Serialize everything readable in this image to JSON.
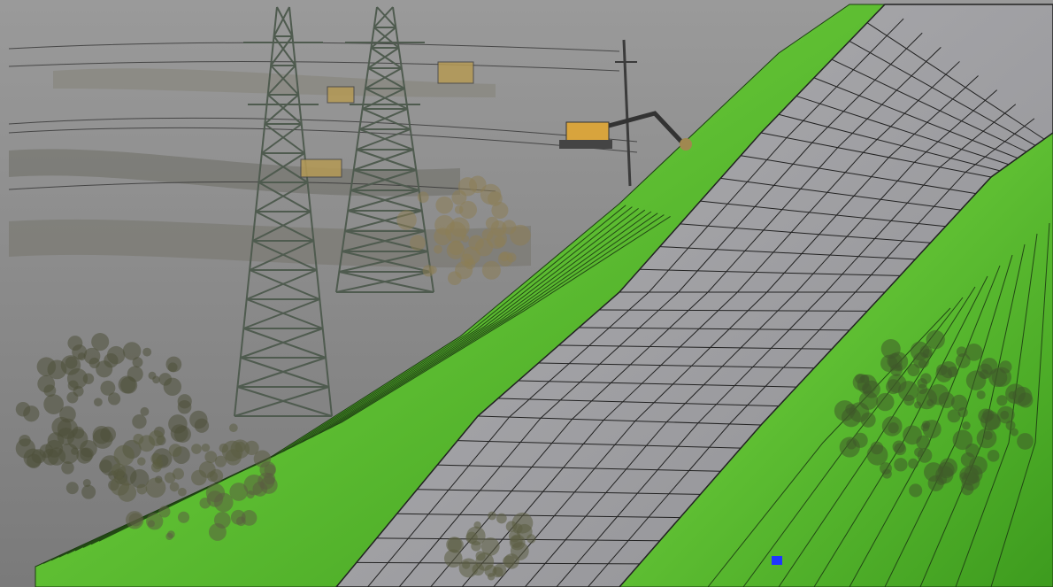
{
  "scene": {
    "colors": {
      "background": "#8c8c8c",
      "ground_point_cloud": "#7f7d77",
      "road_surface": "#a2a2a4",
      "road_grid": "#222222",
      "grass_light": "#6fd03a",
      "grass_dark": "#3e9a1d",
      "embankment_lines": "#1d3d12",
      "tower_steel": "#4f5b4f",
      "vegetation": "#5a5a3c",
      "equipment": "#c8a34a",
      "accent_blue": "#1f35ff"
    },
    "objects": [
      "transmission-tower",
      "transmission-tower",
      "excavator",
      "utility-pole",
      "road-mesh",
      "grass-embankment",
      "trees",
      "construction-equipment"
    ]
  }
}
